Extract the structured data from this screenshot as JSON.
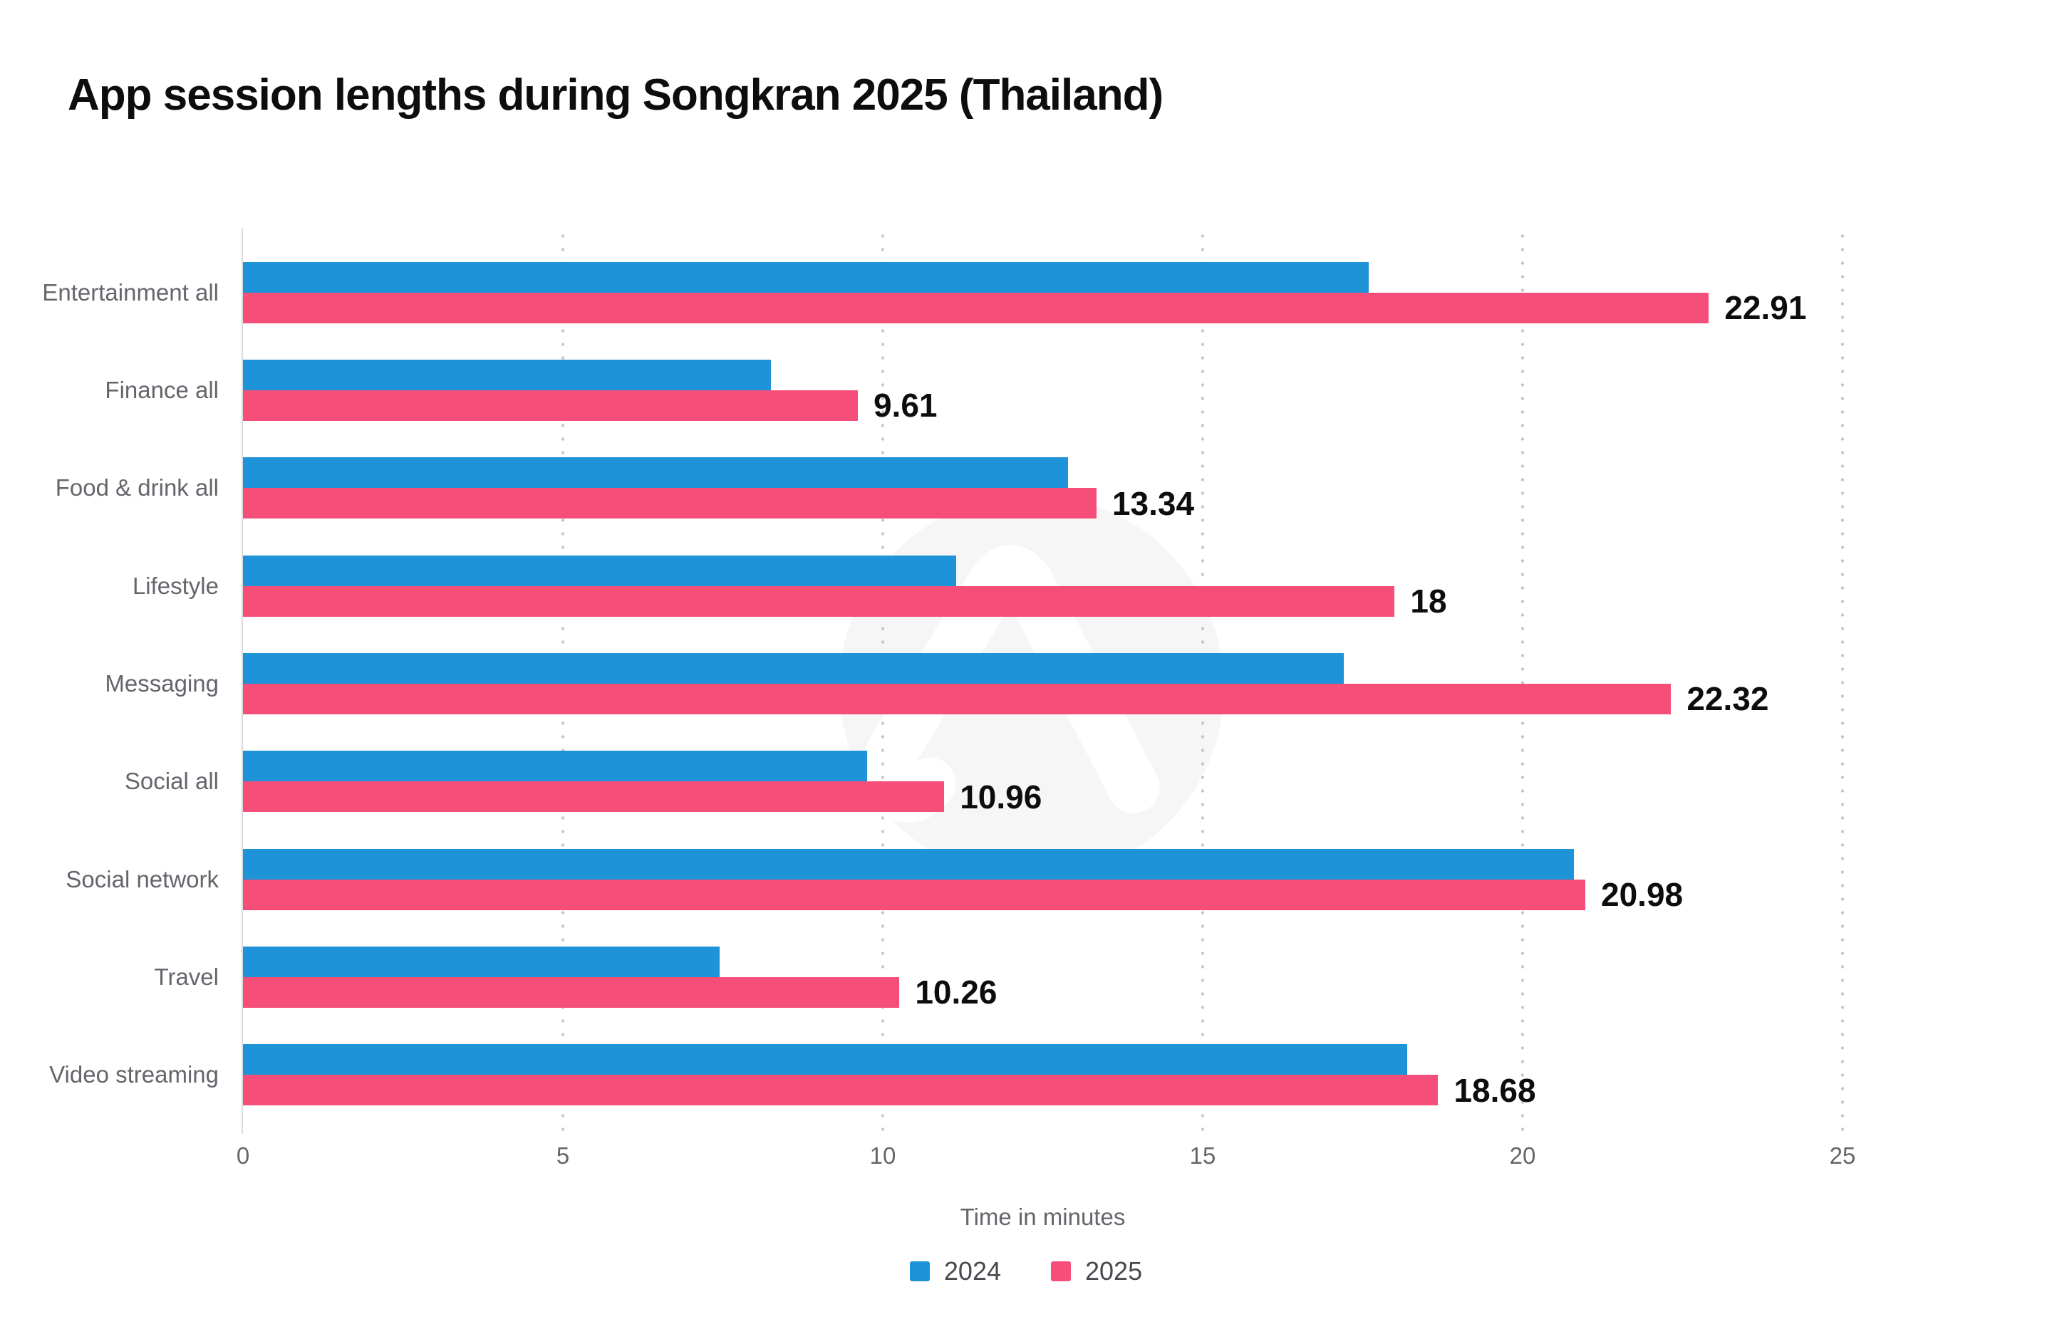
{
  "title": "App session lengths during Songkran 2025 (Thailand)",
  "chart_data": {
    "type": "bar",
    "orientation": "horizontal",
    "title": "App session lengths during Songkran 2025 (Thailand)",
    "categories": [
      "Entertainment all",
      "Finance all",
      "Food & drink all",
      "Lifestyle",
      "Messaging",
      "Social all",
      "Social network",
      "Travel",
      "Video streaming"
    ],
    "series": [
      {
        "name": "2024",
        "color": "#1E93D8",
        "values": [
          17.6,
          8.25,
          12.9,
          11.15,
          17.2,
          9.75,
          20.8,
          7.45,
          18.2
        ],
        "value_labels_shown": false
      },
      {
        "name": "2025",
        "color": "#F54E78",
        "values": [
          22.91,
          9.61,
          13.34,
          18,
          22.32,
          10.96,
          20.98,
          10.26,
          18.68
        ],
        "value_labels": [
          "22.91",
          "9.61",
          "13.34",
          "18",
          "22.32",
          "10.96",
          "20.98",
          "10.26",
          "18.68"
        ],
        "value_labels_shown": true
      }
    ],
    "xlabel": "Time in minutes",
    "ylabel": "",
    "xlim": [
      0,
      25
    ],
    "xticks": [
      0,
      5,
      10,
      15,
      20,
      25
    ],
    "grid": "dotted-vertical-gridlines",
    "legend_position": "bottom-center"
  },
  "legend": {
    "items": [
      {
        "label": "2024",
        "color": "#1E93D8"
      },
      {
        "label": "2025",
        "color": "#F54E78"
      }
    ]
  },
  "colors": {
    "background": "#ffffff",
    "series_2024": "#1E93D8",
    "series_2025": "#F54E78",
    "axis_text": "#63666b",
    "data_label": "#0d0d0d",
    "gridline": "#c7c7c7",
    "watermark_circle": "#f6f6f6"
  },
  "watermark": {
    "name": "adjust-logo-watermark"
  }
}
